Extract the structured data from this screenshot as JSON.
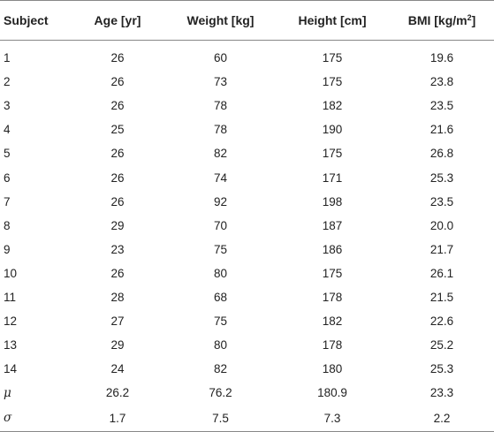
{
  "table": {
    "headers": {
      "subject": "Subject",
      "age": "Age [yr]",
      "weight": "Weight [kg]",
      "height": "Height [cm]",
      "bmi_prefix": "BMI [kg/m",
      "bmi_exponent": "2",
      "bmi_suffix": "]"
    },
    "rows": [
      {
        "subject": "1",
        "age": "26",
        "weight": "60",
        "height": "175",
        "bmi": "19.6"
      },
      {
        "subject": "2",
        "age": "26",
        "weight": "73",
        "height": "175",
        "bmi": "23.8"
      },
      {
        "subject": "3",
        "age": "26",
        "weight": "78",
        "height": "182",
        "bmi": "23.5"
      },
      {
        "subject": "4",
        "age": "25",
        "weight": "78",
        "height": "190",
        "bmi": "21.6"
      },
      {
        "subject": "5",
        "age": "26",
        "weight": "82",
        "height": "175",
        "bmi": "26.8"
      },
      {
        "subject": "6",
        "age": "26",
        "weight": "74",
        "height": "171",
        "bmi": "25.3"
      },
      {
        "subject": "7",
        "age": "26",
        "weight": "92",
        "height": "198",
        "bmi": "23.5"
      },
      {
        "subject": "8",
        "age": "29",
        "weight": "70",
        "height": "187",
        "bmi": "20.0"
      },
      {
        "subject": "9",
        "age": "23",
        "weight": "75",
        "height": "186",
        "bmi": "21.7"
      },
      {
        "subject": "10",
        "age": "26",
        "weight": "80",
        "height": "175",
        "bmi": "26.1"
      },
      {
        "subject": "11",
        "age": "28",
        "weight": "68",
        "height": "178",
        "bmi": "21.5"
      },
      {
        "subject": "12",
        "age": "27",
        "weight": "75",
        "height": "182",
        "bmi": "22.6"
      },
      {
        "subject": "13",
        "age": "29",
        "weight": "80",
        "height": "178",
        "bmi": "25.2"
      },
      {
        "subject": "14",
        "age": "24",
        "weight": "82",
        "height": "180",
        "bmi": "25.3"
      }
    ],
    "stats": [
      {
        "label": "μ",
        "age": "26.2",
        "weight": "76.2",
        "height": "180.9",
        "bmi": "23.3"
      },
      {
        "label": "σ",
        "age": "1.7",
        "weight": "7.5",
        "height": "7.3",
        "bmi": "2.2"
      }
    ]
  }
}
